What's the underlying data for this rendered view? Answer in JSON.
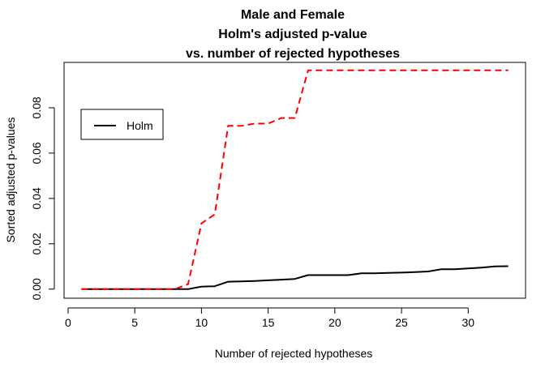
{
  "chart_data": {
    "type": "line",
    "title_lines": [
      "Male and Female",
      "Holm's adjusted p-value",
      "vs. number of rejected hypotheses"
    ],
    "xlabel": "Number of rejected hypotheses",
    "ylabel": "Sorted adjusted p-values",
    "xlim": [
      -0.3,
      34.3
    ],
    "ylim": [
      -0.004,
      0.1
    ],
    "xticks": [
      "0",
      "5",
      "10",
      "15",
      "20",
      "25",
      "30"
    ],
    "yticks": [
      "0.00",
      "0.02",
      "0.04",
      "0.06",
      "0.08"
    ],
    "legend": {
      "position": "top-left",
      "entries": [
        "Holm"
      ]
    },
    "grid": false,
    "x": [
      1,
      2,
      3,
      4,
      5,
      6,
      7,
      8,
      9,
      10,
      11,
      12,
      13,
      14,
      15,
      16,
      17,
      18,
      19,
      20,
      21,
      22,
      23,
      24,
      25,
      26,
      27,
      28,
      29,
      30,
      31,
      32,
      33
    ],
    "series": [
      {
        "name": "Holm",
        "color": "#000000",
        "dash": "solid",
        "values": [
          0.0,
          0.0,
          0.0,
          0.0,
          0.0,
          0.0,
          0.0,
          0.0,
          0.0,
          0.0011,
          0.0013,
          0.0033,
          0.0034,
          0.0036,
          0.0039,
          0.0042,
          0.0045,
          0.0062,
          0.0062,
          0.0062,
          0.0062,
          0.007,
          0.007,
          0.0072,
          0.0073,
          0.0075,
          0.0078,
          0.0088,
          0.0088,
          0.0091,
          0.0095,
          0.01,
          0.0101
        ]
      },
      {
        "color": "#ff0000",
        "dash": "dashed",
        "values": [
          0.0,
          0.0,
          0.0,
          0.0,
          0.0,
          0.0,
          0.0,
          0.0,
          0.0022,
          0.029,
          0.033,
          0.072,
          0.072,
          0.073,
          0.073,
          0.0755,
          0.0755,
          0.0965,
          0.0965,
          0.0965,
          0.0965,
          0.0965,
          0.0965,
          0.0965,
          0.0965,
          0.0965,
          0.0965,
          0.0965,
          0.0965,
          0.0965,
          0.0965,
          0.0965,
          0.0965
        ]
      }
    ]
  }
}
